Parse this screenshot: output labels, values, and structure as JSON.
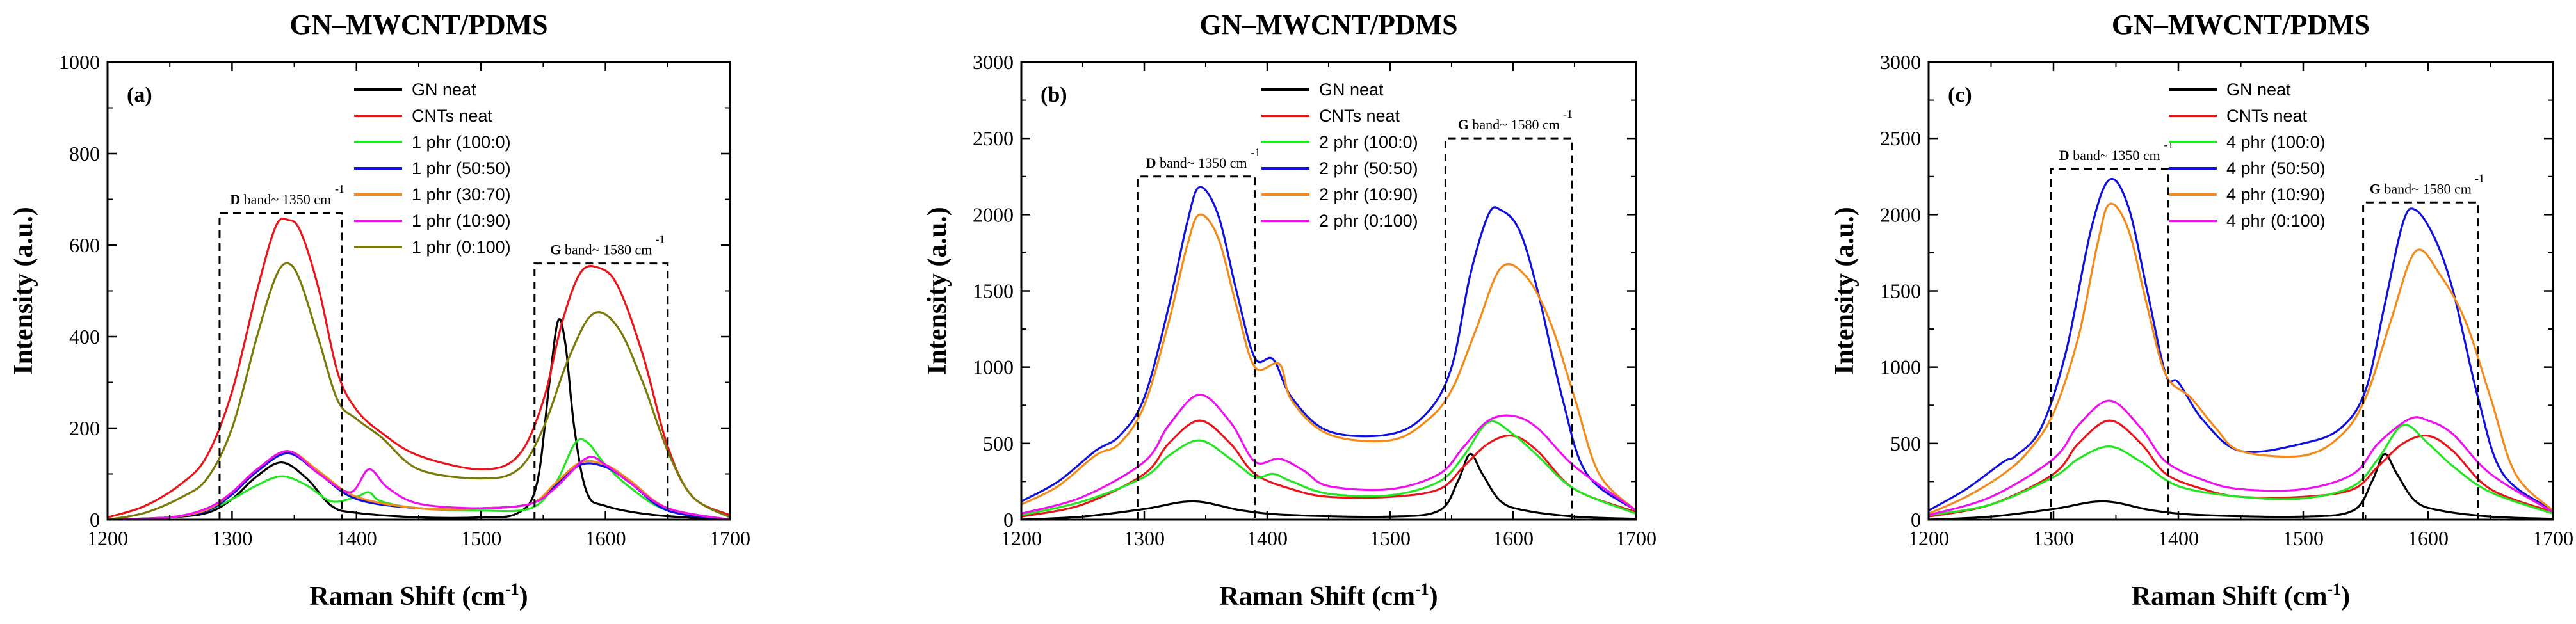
{
  "colors": {
    "GN": "#000000",
    "CNT": "#e8151b",
    "c1": "#22e622",
    "c2": "#1111dd",
    "c3": "#f38a1c",
    "c4": "#ee11ee",
    "c5": "#7a7a0a"
  },
  "chart_data": [
    {
      "type": "line",
      "title": "GN–MWCNT/PDMS",
      "panel_label": "(a)",
      "xlabel": "Raman Shift (cm",
      "xlabel_sup": "-1",
      "xlabel_end": ")",
      "ylabel": "Intensity (a.u.)",
      "xlim": [
        1200,
        1700
      ],
      "ylim": [
        0,
        1000
      ],
      "xticks": [
        1200,
        1300,
        1400,
        1500,
        1600,
        1700
      ],
      "yticks": [
        0,
        200,
        400,
        600,
        800,
        1000
      ],
      "legend": [
        "GN neat",
        "CNTs neat",
        "1 phr (100:0)",
        "1 phr (50:50)",
        "1 phr (30:70)",
        "1 phr (10:90)",
        "1 phr (0:100)"
      ],
      "series": [
        {
          "name": "GN neat",
          "color_key": "GN",
          "x": [
            1200,
            1250,
            1280,
            1300,
            1320,
            1340,
            1360,
            1380,
            1400,
            1450,
            1500,
            1530,
            1545,
            1555,
            1562,
            1568,
            1575,
            1585,
            1600,
            1640,
            1700
          ],
          "values": [
            0,
            5,
            15,
            45,
            95,
            125,
            90,
            30,
            15,
            5,
            5,
            15,
            80,
            300,
            435,
            380,
            200,
            60,
            30,
            10,
            0
          ]
        },
        {
          "name": "CNTs neat",
          "color_key": "CNT",
          "x": [
            1200,
            1230,
            1260,
            1280,
            1300,
            1320,
            1335,
            1345,
            1355,
            1370,
            1385,
            1400,
            1420,
            1450,
            1500,
            1530,
            1550,
            1565,
            1580,
            1595,
            1610,
            1630,
            1650,
            1670,
            1700
          ],
          "values": [
            5,
            30,
            80,
            140,
            280,
            500,
            640,
            655,
            630,
            500,
            320,
            240,
            190,
            140,
            110,
            140,
            260,
            430,
            540,
            550,
            510,
            360,
            160,
            50,
            10
          ]
        },
        {
          "name": "1 phr (100:0)",
          "color_key": "c1",
          "x": [
            1200,
            1250,
            1280,
            1300,
            1320,
            1340,
            1360,
            1380,
            1400,
            1410,
            1420,
            1450,
            1500,
            1540,
            1560,
            1575,
            1585,
            1600,
            1620,
            1650,
            1700
          ],
          "values": [
            0,
            5,
            20,
            45,
            75,
            95,
            75,
            40,
            50,
            60,
            40,
            25,
            20,
            25,
            80,
            165,
            170,
            120,
            70,
            20,
            0
          ]
        },
        {
          "name": "1 phr (50:50)",
          "color_key": "c2",
          "x": [
            1200,
            1250,
            1280,
            1300,
            1320,
            1345,
            1370,
            1400,
            1450,
            1500,
            1540,
            1560,
            1580,
            1600,
            1620,
            1650,
            1700
          ],
          "values": [
            0,
            5,
            20,
            55,
            105,
            145,
            100,
            45,
            25,
            25,
            35,
            75,
            120,
            115,
            80,
            20,
            0
          ]
        },
        {
          "name": "1 phr (30:70)",
          "color_key": "c3",
          "x": [
            1200,
            1250,
            1280,
            1300,
            1320,
            1345,
            1370,
            1400,
            1450,
            1500,
            1540,
            1560,
            1580,
            1600,
            1620,
            1650,
            1700
          ],
          "values": [
            0,
            5,
            22,
            60,
            110,
            150,
            105,
            50,
            25,
            25,
            35,
            80,
            125,
            120,
            85,
            25,
            0
          ]
        },
        {
          "name": "1 phr (10:90)",
          "color_key": "c4",
          "x": [
            1200,
            1250,
            1280,
            1300,
            1320,
            1345,
            1370,
            1395,
            1410,
            1425,
            1450,
            1500,
            1540,
            1560,
            1585,
            1600,
            1620,
            1650,
            1700
          ],
          "values": [
            0,
            5,
            25,
            60,
            110,
            150,
            100,
            60,
            110,
            70,
            35,
            25,
            35,
            70,
            135,
            120,
            80,
            25,
            0
          ]
        },
        {
          "name": "1 phr (0:100)",
          "color_key": "c5",
          "x": [
            1200,
            1230,
            1260,
            1280,
            1300,
            1320,
            1335,
            1345,
            1355,
            1370,
            1385,
            1400,
            1420,
            1450,
            1500,
            1530,
            1550,
            1570,
            1590,
            1610,
            1630,
            1650,
            1670,
            1700
          ],
          "values": [
            0,
            15,
            50,
            90,
            200,
            400,
            530,
            560,
            520,
            390,
            260,
            220,
            180,
            110,
            90,
            110,
            200,
            350,
            450,
            420,
            300,
            150,
            50,
            5
          ]
        }
      ],
      "boxes": [
        {
          "x0": 1290,
          "x1": 1388,
          "y0": 0,
          "y1": 670,
          "label": "D band~ 1350 cm",
          "sup": "-1"
        },
        {
          "x0": 1543,
          "x1": 1650,
          "y0": 0,
          "y1": 560,
          "label": "G band~ 1580 cm",
          "sup": "-1"
        }
      ]
    },
    {
      "type": "line",
      "title": "GN–MWCNT/PDMS",
      "panel_label": "(b)",
      "xlabel": "Raman Shift (cm",
      "xlabel_sup": "-1",
      "xlabel_end": ")",
      "ylabel": "Intensity (a.u.)",
      "xlim": [
        1200,
        1700
      ],
      "ylim": [
        0,
        3000
      ],
      "xticks": [
        1200,
        1300,
        1400,
        1500,
        1600,
        1700
      ],
      "yticks": [
        0,
        500,
        1000,
        1500,
        2000,
        2500,
        3000
      ],
      "legend": [
        "GN neat",
        "CNTs neat",
        "2 phr (100:0)",
        "2 phr (50:50)",
        "2 phr (10:90)",
        "2 phr (0:100)"
      ],
      "series": [
        {
          "name": "GN neat",
          "color_key": "GN",
          "x": [
            1200,
            1250,
            1300,
            1340,
            1380,
            1420,
            1500,
            1540,
            1555,
            1565,
            1575,
            1590,
            1610,
            1650,
            1700
          ],
          "values": [
            0,
            20,
            70,
            120,
            60,
            30,
            20,
            60,
            250,
            430,
            300,
            120,
            60,
            20,
            5
          ]
        },
        {
          "name": "CNTs neat",
          "color_key": "CNT",
          "x": [
            1200,
            1250,
            1300,
            1320,
            1345,
            1370,
            1390,
            1420,
            1450,
            1500,
            1540,
            1560,
            1580,
            1600,
            1620,
            1650,
            1700
          ],
          "values": [
            20,
            100,
            300,
            500,
            650,
            500,
            300,
            200,
            150,
            150,
            200,
            350,
            500,
            550,
            450,
            200,
            50
          ]
        },
        {
          "name": "2 phr (100:0)",
          "color_key": "c1",
          "x": [
            1200,
            1250,
            1300,
            1320,
            1345,
            1370,
            1390,
            1405,
            1420,
            1450,
            1500,
            1540,
            1560,
            1580,
            1600,
            1620,
            1650,
            1700
          ],
          "values": [
            30,
            120,
            280,
            420,
            520,
            400,
            280,
            300,
            250,
            170,
            160,
            250,
            420,
            640,
            560,
            420,
            200,
            40
          ]
        },
        {
          "name": "2 phr (50:50)",
          "color_key": "c2",
          "x": [
            1200,
            1230,
            1260,
            1280,
            1300,
            1320,
            1335,
            1345,
            1360,
            1375,
            1390,
            1405,
            1420,
            1450,
            1500,
            1530,
            1550,
            1565,
            1580,
            1590,
            1605,
            1620,
            1640,
            1660,
            1700
          ],
          "values": [
            120,
            250,
            450,
            550,
            800,
            1400,
            1950,
            2180,
            2000,
            1500,
            1060,
            1050,
            800,
            580,
            560,
            700,
            1000,
            1600,
            2000,
            2030,
            1900,
            1500,
            800,
            300,
            60
          ]
        },
        {
          "name": "2 phr (10:90)",
          "color_key": "c3",
          "x": [
            1200,
            1230,
            1260,
            1280,
            1300,
            1320,
            1335,
            1345,
            1360,
            1375,
            1390,
            1410,
            1420,
            1450,
            1500,
            1530,
            1550,
            1570,
            1590,
            1610,
            1630,
            1650,
            1670,
            1700
          ],
          "values": [
            100,
            220,
            420,
            500,
            750,
            1300,
            1800,
            2000,
            1850,
            1400,
            1000,
            1020,
            780,
            560,
            520,
            650,
            850,
            1250,
            1650,
            1600,
            1300,
            800,
            300,
            60
          ]
        },
        {
          "name": "2 phr (0:100)",
          "color_key": "c4",
          "x": [
            1200,
            1250,
            1300,
            1320,
            1345,
            1370,
            1390,
            1410,
            1430,
            1450,
            1500,
            1540,
            1560,
            1580,
            1600,
            1620,
            1650,
            1700
          ],
          "values": [
            40,
            150,
            380,
            620,
            820,
            640,
            380,
            400,
            320,
            220,
            200,
            300,
            480,
            650,
            680,
            600,
            350,
            60
          ]
        }
      ],
      "boxes": [
        {
          "x0": 1295,
          "x1": 1390,
          "y0": 0,
          "y1": 2250,
          "label": "D band~ 1350 cm",
          "sup": "-1"
        },
        {
          "x0": 1545,
          "x1": 1648,
          "y0": 0,
          "y1": 2500,
          "label": "G band~ 1580 cm",
          "sup": "-1"
        }
      ]
    },
    {
      "type": "line",
      "title": "GN–MWCNT/PDMS",
      "panel_label": "(c)",
      "xlabel": "Raman Shift (cm",
      "xlabel_sup": "-1",
      "xlabel_end": ")",
      "ylabel": "Intensity (a.u.)",
      "xlim": [
        1200,
        1700
      ],
      "ylim": [
        0,
        3000
      ],
      "xticks": [
        1200,
        1300,
        1400,
        1500,
        1600,
        1700
      ],
      "yticks": [
        0,
        500,
        1000,
        1500,
        2000,
        2500,
        3000
      ],
      "legend": [
        "GN neat",
        "CNTs neat",
        "4 phr (100:0)",
        "4 phr (50:50)",
        "4 phr (10:90)",
        "4 phr (0:100)"
      ],
      "series": [
        {
          "name": "GN neat",
          "color_key": "GN",
          "x": [
            1200,
            1250,
            1300,
            1340,
            1380,
            1420,
            1500,
            1540,
            1555,
            1565,
            1575,
            1590,
            1610,
            1650,
            1700
          ],
          "values": [
            0,
            20,
            70,
            120,
            60,
            30,
            20,
            60,
            250,
            430,
            300,
            120,
            60,
            20,
            5
          ]
        },
        {
          "name": "CNTs neat",
          "color_key": "CNT",
          "x": [
            1200,
            1250,
            1300,
            1320,
            1345,
            1370,
            1390,
            1420,
            1450,
            1500,
            1540,
            1560,
            1580,
            1600,
            1620,
            1650,
            1700
          ],
          "values": [
            20,
            100,
            300,
            500,
            650,
            500,
            300,
            200,
            150,
            150,
            200,
            350,
            500,
            550,
            450,
            200,
            50
          ]
        },
        {
          "name": "4 phr (100:0)",
          "color_key": "c1",
          "x": [
            1200,
            1250,
            1300,
            1320,
            1345,
            1370,
            1400,
            1450,
            1500,
            1540,
            1560,
            1580,
            1600,
            1620,
            1650,
            1700
          ],
          "values": [
            30,
            100,
            280,
            400,
            480,
            380,
            220,
            150,
            140,
            220,
            400,
            620,
            500,
            350,
            180,
            40
          ]
        },
        {
          "name": "4 phr (50:50)",
          "color_key": "c2",
          "x": [
            1200,
            1230,
            1260,
            1270,
            1290,
            1310,
            1330,
            1345,
            1360,
            1375,
            1390,
            1400,
            1420,
            1450,
            1500,
            1530,
            1550,
            1565,
            1580,
            1590,
            1605,
            1620,
            1640,
            1660,
            1700
          ],
          "values": [
            60,
            200,
            380,
            420,
            600,
            1100,
            1900,
            2230,
            2050,
            1500,
            950,
            900,
            650,
            450,
            500,
            600,
            850,
            1400,
            1950,
            2030,
            1850,
            1500,
            800,
            300,
            60
          ]
        },
        {
          "name": "4 phr (10:90)",
          "color_key": "c3",
          "x": [
            1200,
            1230,
            1260,
            1280,
            1300,
            1320,
            1335,
            1345,
            1360,
            1375,
            1390,
            1410,
            1430,
            1450,
            1500,
            1530,
            1550,
            1570,
            1590,
            1610,
            1630,
            1650,
            1670,
            1700
          ],
          "values": [
            40,
            150,
            300,
            450,
            700,
            1200,
            1800,
            2070,
            1900,
            1400,
            950,
            800,
            600,
            450,
            420,
            550,
            800,
            1300,
            1760,
            1600,
            1300,
            800,
            300,
            60
          ]
        },
        {
          "name": "4 phr (0:100)",
          "color_key": "c4",
          "x": [
            1200,
            1250,
            1300,
            1320,
            1345,
            1370,
            1390,
            1420,
            1450,
            1500,
            1540,
            1560,
            1585,
            1600,
            1620,
            1650,
            1700
          ],
          "values": [
            30,
            150,
            400,
            620,
            780,
            600,
            380,
            260,
            200,
            200,
            300,
            500,
            660,
            650,
            560,
            300,
            50
          ]
        }
      ],
      "boxes": [
        {
          "x0": 1298,
          "x1": 1392,
          "y0": 0,
          "y1": 2300,
          "label": "D band~ 1350 cm",
          "sup": "-1"
        },
        {
          "x0": 1548,
          "x1": 1640,
          "y0": 0,
          "y1": 2080,
          "label": "G band~ 1580 cm",
          "sup": "-1"
        }
      ]
    }
  ]
}
